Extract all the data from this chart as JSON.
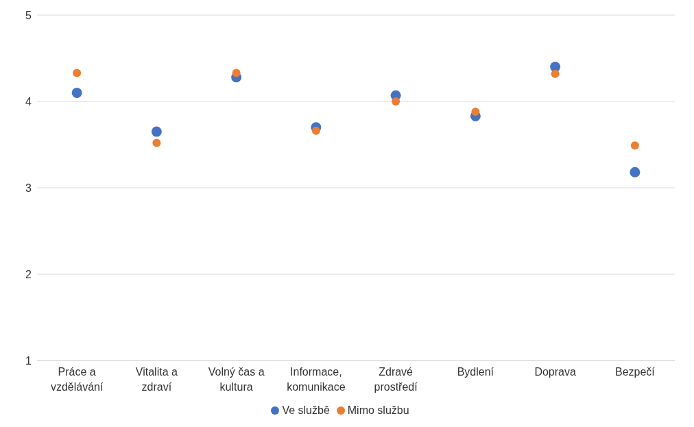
{
  "chart_data": {
    "type": "scatter",
    "categories": [
      "Práce a vzdělávání",
      "Vitalita a zdraví",
      "Volný čas a kultura",
      "Informace, komunikace",
      "Zdravé prostředí",
      "Bydlení",
      "Doprava",
      "Bezpečí"
    ],
    "series": [
      {
        "name": "Ve službě",
        "color": "#4472c4",
        "values": [
          4.1,
          3.65,
          4.28,
          3.7,
          4.07,
          3.83,
          4.4,
          3.18
        ]
      },
      {
        "name": "Mimo službu",
        "color": "#ed7d31",
        "values": [
          4.33,
          3.52,
          4.33,
          3.66,
          4.0,
          3.88,
          4.32,
          3.49
        ]
      }
    ],
    "ylim": [
      1,
      5
    ],
    "yticks": [
      1,
      2,
      3,
      4,
      5
    ],
    "grid": "y",
    "legend": "bottom",
    "marker": "circle"
  }
}
